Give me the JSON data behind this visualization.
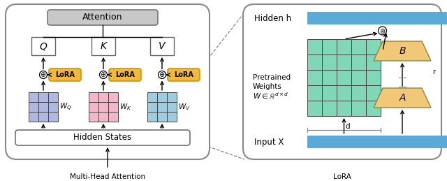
{
  "bg_color": "#ffffff",
  "attention_box_color": "#c8c8c8",
  "lora_box_color": "#f0b840",
  "lora_edge_color": "#c89000",
  "q_color": "#b0b8e0",
  "k_color": "#f0b8c8",
  "v_color": "#a0cce0",
  "green_grid_color": "#80d8b8",
  "blue_bar_color": "#5aaad8",
  "orange_trap_color": "#f0c878",
  "title_left": "Multi-Head Attention",
  "title_right": "LoRA",
  "hidden_states_label": "Hidden States",
  "attention_label": "Attention",
  "hidden_h_label": "Hidden h",
  "input_x_label": "Input X",
  "pretrained_line1": "Pretrained",
  "pretrained_line2": "Weights",
  "pretrained_line3": "$W \\in \\mathbb{R}^{d\\times d}$",
  "lora_label": "LoRA",
  "q_label": "Q",
  "k_label": "K",
  "v_label": "V",
  "b_label": "B",
  "a_label": "A",
  "r_label": "r",
  "d_label": "d",
  "panel_ec": "#888888",
  "box_ec": "#666666"
}
